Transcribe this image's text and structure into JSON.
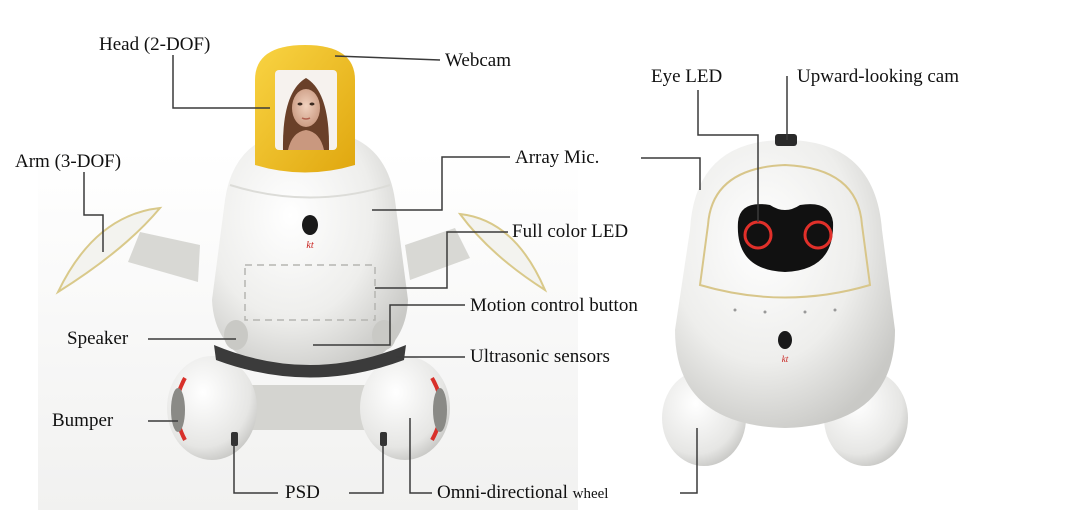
{
  "labels": {
    "head": "Head (2-DOF)",
    "webcam": "Webcam",
    "arm": "Arm (3-DOF)",
    "array_mic": "Array Mic.",
    "full_color_led": "Full color LED",
    "motion_button": "Motion control button",
    "speaker": "Speaker",
    "ultrasonic": "Ultrasonic sensors",
    "bumper": "Bumper",
    "psd": "PSD",
    "omni_main": "Omni-directional",
    "omni_small": "wheel",
    "eye_led": "Eye LED",
    "upward_cam": "Upward-looking cam"
  },
  "logo_text": "kt",
  "colors": {
    "head_yellow": "#f2c21b",
    "body_white": "#f4f4f3",
    "wheel_red": "#d8302a",
    "leader_line": "#3a3a3a"
  }
}
